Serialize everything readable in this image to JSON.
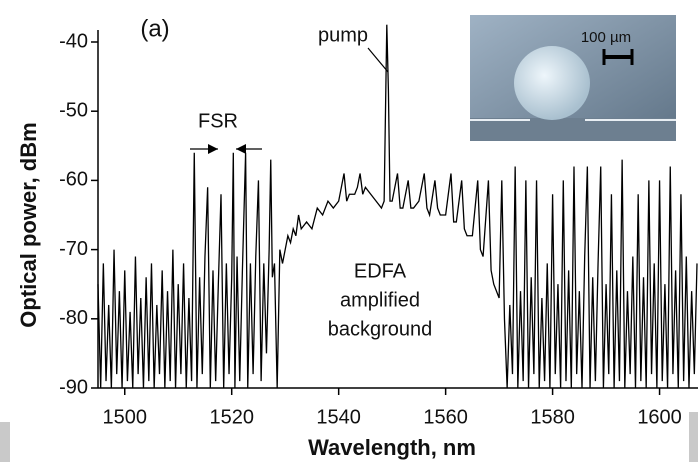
{
  "chart_data": {
    "type": "line",
    "panel_label": "(a)",
    "x_label": "Wavelength, nm",
    "y_label": "Optical power, dBm",
    "annotations": [
      "pump",
      "FSR"
    ],
    "center_note": [
      "EDFA",
      "amplified",
      "background"
    ],
    "inset_scale": "100 µm",
    "color": "#000000",
    "xlim": [
      1495,
      1607
    ],
    "ylim": [
      -90,
      -37.5
    ],
    "xticks": [
      1500,
      1520,
      1540,
      1560,
      1580,
      1600
    ],
    "yticks": [
      -90,
      -80,
      -70,
      -60,
      -50,
      -40
    ],
    "x": [
      1495,
      1495.5,
      1496,
      1496.5,
      1497,
      1497.5,
      1498,
      1498.5,
      1499,
      1499.5,
      1500,
      1500.5,
      1501,
      1501.5,
      1502,
      1502.5,
      1503,
      1503.5,
      1504,
      1504.5,
      1505,
      1505.5,
      1506,
      1506.5,
      1507,
      1507.5,
      1508,
      1508.5,
      1509,
      1509.5,
      1510,
      1510.5,
      1511,
      1511.5,
      1512,
      1512.5,
      1513,
      1513.5,
      1514,
      1514.5,
      1515,
      1515.5,
      1516,
      1516.5,
      1517,
      1517.5,
      1518,
      1518.5,
      1519,
      1519.5,
      1520,
      1520.3,
      1520.6,
      1521,
      1521.5,
      1522,
      1522.6,
      1523,
      1523.5,
      1524,
      1524.5,
      1525,
      1525.5,
      1526,
      1526.5,
      1527,
      1527.3,
      1527.6,
      1528,
      1528.5,
      1529,
      1529.5,
      1530,
      1530.5,
      1531,
      1531.5,
      1532,
      1532.5,
      1533,
      1534,
      1535,
      1536,
      1537,
      1538,
      1539,
      1540,
      1541,
      1541.5,
      1542,
      1543,
      1543.5,
      1544,
      1544.5,
      1545,
      1546,
      1547,
      1548,
      1548.5,
      1549,
      1549.3,
      1549.6,
      1550,
      1551,
      1551.5,
      1552,
      1553,
      1553.5,
      1554,
      1555,
      1556,
      1556.5,
      1557,
      1558,
      1558.5,
      1559,
      1560,
      1561,
      1561.5,
      1562,
      1563,
      1563.5,
      1564,
      1565,
      1566,
      1566.5,
      1567,
      1568,
      1568.5,
      1569,
      1570,
      1570.5,
      1571,
      1571.5,
      1572,
      1572.5,
      1573,
      1573.5,
      1574,
      1574.5,
      1575,
      1575.5,
      1576,
      1576.5,
      1577,
      1577.5,
      1578,
      1578.5,
      1579,
      1579.5,
      1580,
      1580.5,
      1581,
      1581.5,
      1582,
      1582.5,
      1583,
      1583.5,
      1584,
      1584.5,
      1585,
      1585.5,
      1586,
      1586.5,
      1587,
      1587.5,
      1588,
      1588.5,
      1589,
      1589.5,
      1590,
      1590.5,
      1591,
      1591.5,
      1592,
      1592.5,
      1593,
      1593.5,
      1594,
      1594.5,
      1595,
      1595.5,
      1596,
      1596.5,
      1597,
      1597.5,
      1598,
      1598.5,
      1599,
      1599.5,
      1600,
      1600.5,
      1601,
      1601.5,
      1602,
      1602.5,
      1603,
      1603.5,
      1604,
      1604.5,
      1605,
      1605.5,
      1606,
      1606.5,
      1607
    ],
    "values": [
      -75,
      -90,
      -72,
      -89,
      -78,
      -90,
      -70,
      -88,
      -76,
      -90,
      -73,
      -89,
      -79,
      -90,
      -71,
      -88,
      -77,
      -90,
      -74,
      -89,
      -72,
      -90,
      -78,
      -88,
      -73,
      -90,
      -76,
      -89,
      -70,
      -90,
      -75,
      -88,
      -72,
      -90,
      -77,
      -89,
      -56,
      -90,
      -74,
      -88,
      -71,
      -61,
      -90,
      -73,
      -89,
      -75,
      -62,
      -90,
      -72,
      -88,
      -74,
      -56,
      -90,
      -71,
      -89,
      -73,
      -56,
      -90,
      -72,
      -88,
      -71,
      -60,
      -89,
      -72,
      -85,
      -70,
      -57,
      -74,
      -72,
      -90,
      -70,
      -72,
      -70,
      -68,
      -69,
      -67,
      -68,
      -65,
      -67,
      -66,
      -67,
      -64,
      -65,
      -63,
      -64,
      -63,
      -59,
      -63,
      -62,
      -62,
      -61,
      -59,
      -62,
      -61,
      -62,
      -63,
      -64,
      -63,
      -37.5,
      -47,
      -63,
      -63,
      -59,
      -64,
      -64,
      -60,
      -64,
      -64,
      -63,
      -59,
      -64,
      -65,
      -60,
      -64,
      -65,
      -65,
      -59,
      -66,
      -66,
      -60,
      -67,
      -68,
      -68,
      -60,
      -70,
      -71,
      -60,
      -73,
      -75,
      -77,
      -60,
      -80,
      -90,
      -78,
      -88,
      -58,
      -90,
      -76,
      -89,
      -60,
      -90,
      -74,
      -88,
      -60,
      -90,
      -77,
      -89,
      -72,
      -90,
      -62,
      -88,
      -75,
      -90,
      -60,
      -89,
      -73,
      -90,
      -58,
      -88,
      -76,
      -90,
      -71,
      -58,
      -90,
      -74,
      -89,
      -72,
      -58,
      -90,
      -75,
      -88,
      -62,
      -90,
      -73,
      -89,
      -57,
      -90,
      -76,
      -88,
      -71,
      -90,
      -62,
      -89,
      -74,
      -90,
      -60,
      -88,
      -72,
      -90,
      -60,
      -89,
      -75,
      -90,
      -58,
      -88,
      -73,
      -90,
      -62,
      -89,
      -71,
      -90,
      -76,
      -88,
      -72
    ]
  }
}
